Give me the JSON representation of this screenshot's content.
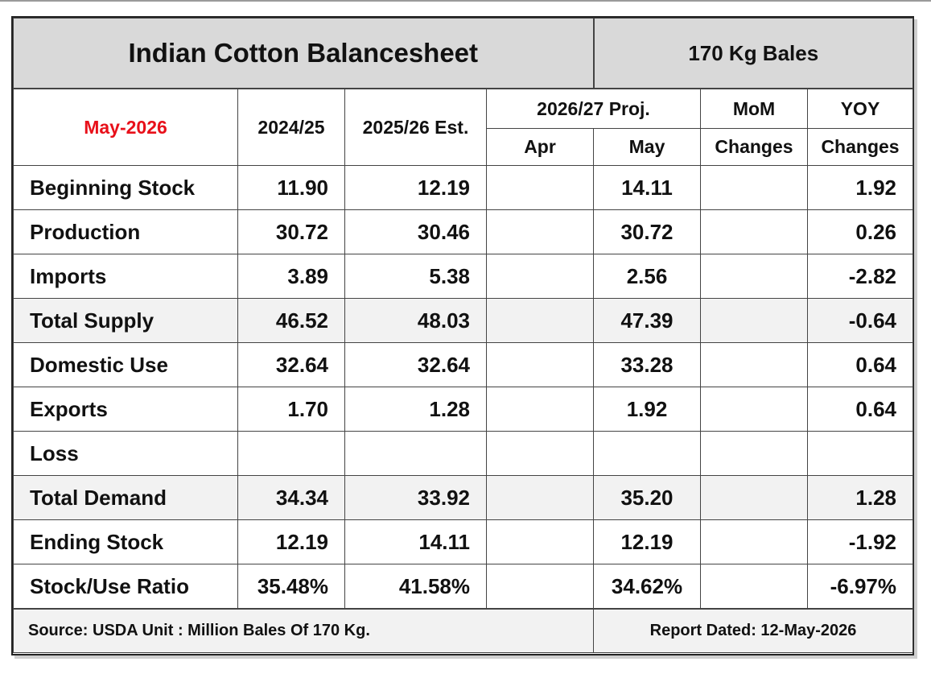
{
  "title": "Indian Cotton Balancesheet",
  "unit_label": "170 Kg Bales",
  "month": "May-2026",
  "headers": {
    "col_2024": "2024/25",
    "col_2025": "2025/26 Est.",
    "col_proj": "2026/27 Proj.",
    "col_apr": "Apr",
    "col_may": "May",
    "mom_top": "MoM",
    "mom_bottom": "Changes",
    "yoy_top": "YOY",
    "yoy_bottom": "Changes"
  },
  "rows": [
    {
      "label": "Beginning Stock",
      "v2024": "11.90",
      "v2025": "12.19",
      "apr": "",
      "may": "14.11",
      "mom": "",
      "yoy": "1.92"
    },
    {
      "label": "Production",
      "v2024": "30.72",
      "v2025": "30.46",
      "apr": "",
      "may": "30.72",
      "mom": "",
      "yoy": "0.26"
    },
    {
      "label": "Imports",
      "v2024": "3.89",
      "v2025": "5.38",
      "apr": "",
      "may": "2.56",
      "mom": "",
      "yoy": "-2.82"
    },
    {
      "label": "Total Supply",
      "v2024": "46.52",
      "v2025": "48.03",
      "apr": "",
      "may": "47.39",
      "mom": "",
      "yoy": "-0.64"
    },
    {
      "label": "Domestic Use",
      "v2024": "32.64",
      "v2025": "32.64",
      "apr": "",
      "may": "33.28",
      "mom": "",
      "yoy": "0.64"
    },
    {
      "label": "Exports",
      "v2024": "1.70",
      "v2025": "1.28",
      "apr": "",
      "may": "1.92",
      "mom": "",
      "yoy": "0.64"
    },
    {
      "label": "Loss",
      "v2024": "",
      "v2025": "",
      "apr": "",
      "may": "",
      "mom": "",
      "yoy": ""
    },
    {
      "label": "Total Demand",
      "v2024": "34.34",
      "v2025": "33.92",
      "apr": "",
      "may": "35.20",
      "mom": "",
      "yoy": "1.28"
    },
    {
      "label": "Ending Stock",
      "v2024": "12.19",
      "v2025": "14.11",
      "apr": "",
      "may": "12.19",
      "mom": "",
      "yoy": "-1.92"
    },
    {
      "label": "Stock/Use Ratio",
      "v2024": "35.48%",
      "v2025": "41.58%",
      "apr": "",
      "may": "34.62%",
      "mom": "",
      "yoy": "-6.97%"
    }
  ],
  "footer": {
    "source": "Source: USDA  Unit : Million Bales Of 170 Kg.",
    "report_date": "Report Dated: 12-May-2026"
  },
  "colors": {
    "header_bg": "#d9d9d9",
    "shaded_row_bg": "#f2f2f2",
    "month_text": "#e8101a"
  }
}
